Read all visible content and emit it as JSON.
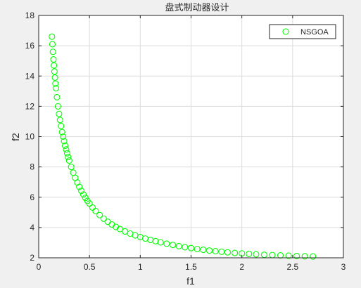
{
  "figure": {
    "background": "#f0f0f0",
    "axes_background": "#ffffff"
  },
  "chart_data": {
    "type": "scatter",
    "title": "盘式制动器设计",
    "xlabel": "f1",
    "ylabel": "f2",
    "xlim": [
      0,
      3
    ],
    "ylim": [
      2,
      18
    ],
    "xticks": [
      0,
      0.5,
      1,
      1.5,
      2,
      2.5,
      3
    ],
    "xtick_labels": [
      "0",
      "0.5",
      "1",
      "1.5",
      "2",
      "2.5",
      "3"
    ],
    "yticks": [
      2,
      4,
      6,
      8,
      10,
      12,
      14,
      16,
      18
    ],
    "ytick_labels": [
      "2",
      "4",
      "6",
      "8",
      "10",
      "12",
      "14",
      "16",
      "18"
    ],
    "grid": true,
    "legend": {
      "position": "top-right",
      "entries": [
        "NSGOA"
      ]
    },
    "series": [
      {
        "name": "NSGOA",
        "marker": "circle-open",
        "color": "#00ff00",
        "x": [
          0.13,
          0.135,
          0.14,
          0.145,
          0.15,
          0.155,
          0.16,
          0.165,
          0.17,
          0.18,
          0.19,
          0.2,
          0.21,
          0.22,
          0.23,
          0.24,
          0.25,
          0.26,
          0.27,
          0.28,
          0.29,
          0.3,
          0.32,
          0.34,
          0.36,
          0.38,
          0.4,
          0.42,
          0.44,
          0.46,
          0.48,
          0.5,
          0.53,
          0.56,
          0.6,
          0.64,
          0.68,
          0.72,
          0.76,
          0.8,
          0.85,
          0.9,
          0.95,
          1.0,
          1.05,
          1.1,
          1.15,
          1.2,
          1.26,
          1.32,
          1.38,
          1.44,
          1.5,
          1.56,
          1.62,
          1.68,
          1.74,
          1.8,
          1.86,
          1.93,
          2.0,
          2.07,
          2.14,
          2.22,
          2.3,
          2.38,
          2.46,
          2.54,
          2.62,
          2.7
        ],
        "y": [
          16.6,
          16.1,
          15.6,
          15.1,
          14.7,
          14.3,
          13.9,
          13.5,
          13.2,
          12.6,
          12.0,
          11.5,
          11.1,
          10.7,
          10.3,
          10.0,
          9.7,
          9.4,
          9.15,
          8.9,
          8.65,
          8.42,
          8.0,
          7.62,
          7.28,
          6.97,
          6.68,
          6.42,
          6.18,
          5.96,
          5.76,
          5.58,
          5.32,
          5.09,
          4.82,
          4.58,
          4.38,
          4.2,
          4.04,
          3.9,
          3.74,
          3.6,
          3.48,
          3.37,
          3.27,
          3.18,
          3.1,
          3.02,
          2.93,
          2.85,
          2.77,
          2.7,
          2.64,
          2.58,
          2.53,
          2.48,
          2.44,
          2.4,
          2.36,
          2.32,
          2.29,
          2.26,
          2.23,
          2.2,
          2.18,
          2.16,
          2.14,
          2.12,
          2.1,
          2.09
        ]
      }
    ]
  }
}
